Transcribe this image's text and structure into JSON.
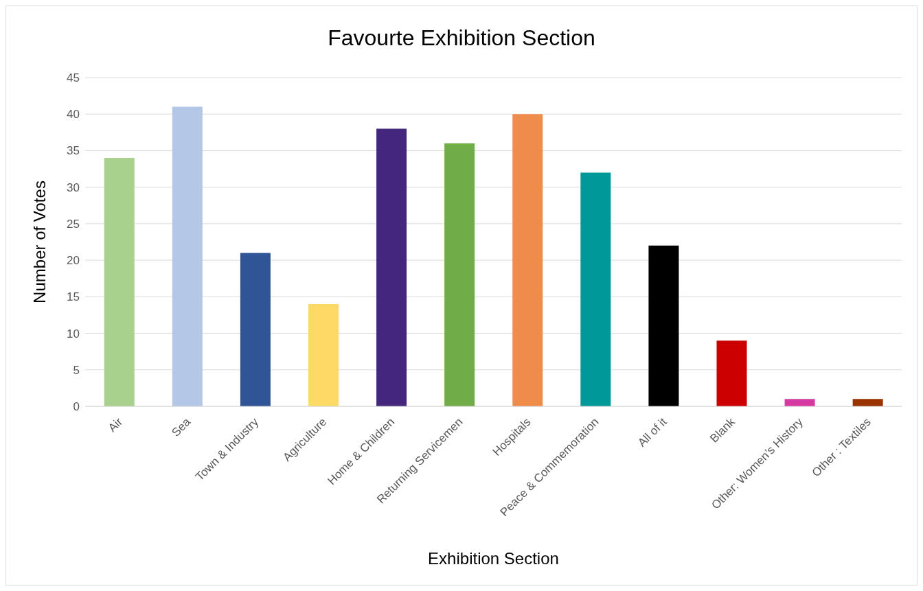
{
  "chart_data": {
    "type": "bar",
    "title": "Favourte Exhibition Section",
    "xlabel": "Exhibition Section",
    "ylabel": "Number of Votes",
    "categories": [
      "Air",
      "Sea",
      "Town & Industry",
      "Agriculture",
      "Home & Children",
      "Returning Servicemen",
      "Hospitals",
      "Peace & Commemoration",
      "All of it",
      "Blank",
      "Other: Women’s History",
      "Other : Textiles"
    ],
    "values": [
      34,
      41,
      21,
      14,
      38,
      36,
      40,
      32,
      22,
      9,
      1,
      1
    ],
    "colors": [
      "#a9d18e",
      "#b4c7e7",
      "#2f5597",
      "#ffd966",
      "#44267e",
      "#70ad47",
      "#f08c4a",
      "#009999",
      "#000000",
      "#cc0000",
      "#d63aa0",
      "#993300"
    ],
    "ylim": [
      0,
      45
    ],
    "yticks": [
      0,
      5,
      10,
      15,
      20,
      25,
      30,
      35,
      40,
      45
    ],
    "grid": "y",
    "legend": false
  }
}
